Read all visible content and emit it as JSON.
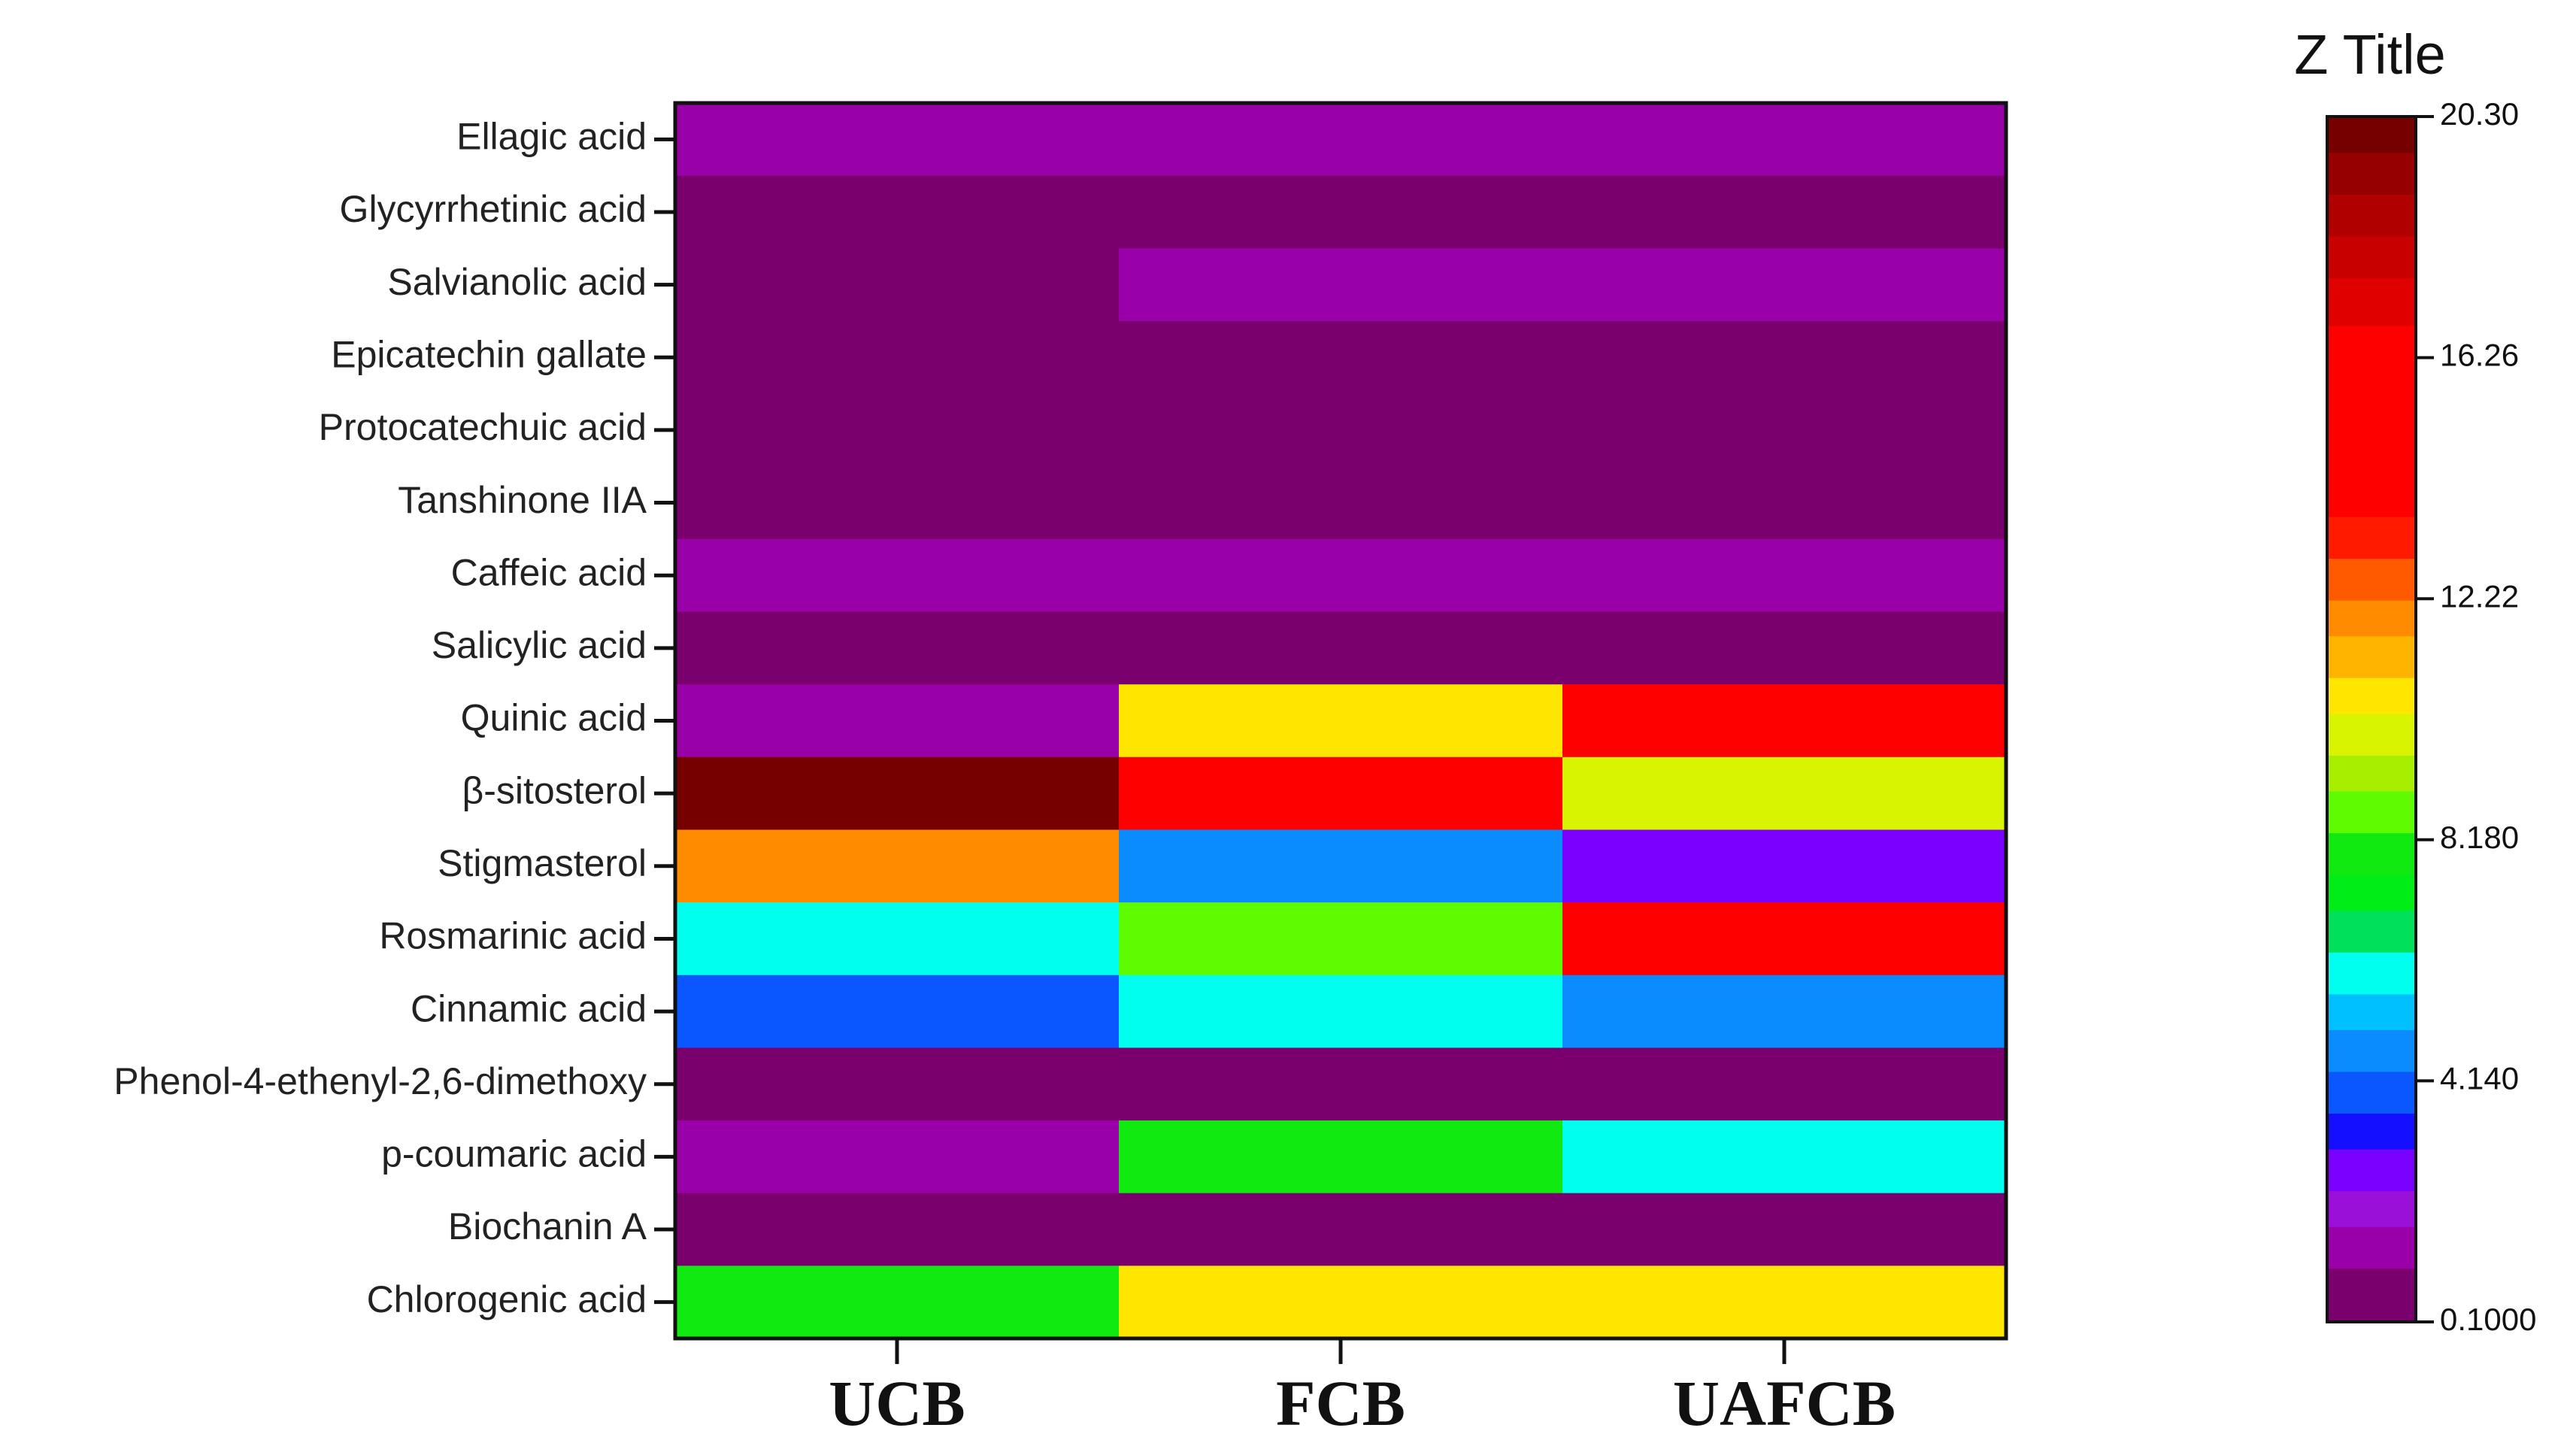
{
  "chart_data": {
    "type": "heatmap",
    "title": "",
    "xlabel": "",
    "ylabel": "",
    "columns": [
      "UCB",
      "FCB",
      "UAFCB"
    ],
    "rows": [
      "Ellagic acid",
      "Glycyrrhetinic acid",
      "Salvianolic acid",
      "Epicatechin gallate",
      "Protocatechuic acid",
      "Tanshinone IIA",
      "Caffeic acid",
      "Salicylic acid",
      "Quinic acid",
      "β-sitosterol",
      "Stigmasterol",
      "Rosmarinic acid",
      "Cinnamic acid",
      "Phenol-4-ethenyl-2,6-dimethoxy",
      "p-coumaric acid",
      "Biochanin A",
      "Chlorogenic acid"
    ],
    "values": [
      [
        1.0,
        1.0,
        1.0
      ],
      [
        0.1,
        0.1,
        0.1
      ],
      [
        0.1,
        1.0,
        1.0
      ],
      [
        0.1,
        0.1,
        0.1
      ],
      [
        0.1,
        0.1,
        0.1
      ],
      [
        0.1,
        0.1,
        0.1
      ],
      [
        1.0,
        1.0,
        1.0
      ],
      [
        0.1,
        0.1,
        0.1
      ],
      [
        1.0,
        10.8,
        15.5
      ],
      [
        20.3,
        15.5,
        9.6
      ],
      [
        11.6,
        4.7,
        2.6
      ],
      [
        6.1,
        8.6,
        15.5
      ],
      [
        3.6,
        5.6,
        4.8
      ],
      [
        0.1,
        0.1,
        0.1
      ],
      [
        1.0,
        7.6,
        5.6
      ],
      [
        0.1,
        0.1,
        0.1
      ],
      [
        7.6,
        10.8,
        10.8
      ]
    ],
    "colorbar": {
      "title": "Z Title",
      "min": 0.1,
      "max": 20.3,
      "ticks": [
        {
          "value": 20.3,
          "label": "20.30"
        },
        {
          "value": 16.26,
          "label": "16.26"
        },
        {
          "value": 12.22,
          "label": "12.22"
        },
        {
          "value": 8.18,
          "label": "8.180"
        },
        {
          "value": 4.14,
          "label": "4.140"
        },
        {
          "value": 0.1,
          "label": "0.1000"
        }
      ],
      "levels": [
        {
          "from": 0.1,
          "to": 1.0,
          "color": "#7a006e"
        },
        {
          "from": 1.0,
          "to": 1.7,
          "color": "#9900a8"
        },
        {
          "from": 1.7,
          "to": 2.3,
          "color": "#9a10d8"
        },
        {
          "from": 2.3,
          "to": 3.0,
          "color": "#7a00ff"
        },
        {
          "from": 3.0,
          "to": 3.6,
          "color": "#1410ff"
        },
        {
          "from": 3.6,
          "to": 4.3,
          "color": "#0a56ff"
        },
        {
          "from": 4.3,
          "to": 5.0,
          "color": "#0a8cff"
        },
        {
          "from": 5.0,
          "to": 5.6,
          "color": "#00c0ff"
        },
        {
          "from": 5.6,
          "to": 6.3,
          "color": "#00ffee"
        },
        {
          "from": 6.3,
          "to": 7.0,
          "color": "#00e05a"
        },
        {
          "from": 7.0,
          "to": 7.6,
          "color": "#00ee16"
        },
        {
          "from": 7.6,
          "to": 8.3,
          "color": "#10ea10"
        },
        {
          "from": 8.3,
          "to": 9.0,
          "color": "#5ffb00"
        },
        {
          "from": 9.0,
          "to": 9.6,
          "color": "#a8ee00"
        },
        {
          "from": 9.6,
          "to": 10.3,
          "color": "#d8f400"
        },
        {
          "from": 10.3,
          "to": 10.9,
          "color": "#ffe600"
        },
        {
          "from": 10.9,
          "to": 11.6,
          "color": "#ffb400"
        },
        {
          "from": 11.6,
          "to": 12.2,
          "color": "#ff8c00"
        },
        {
          "from": 12.2,
          "to": 12.9,
          "color": "#ff5a00"
        },
        {
          "from": 12.9,
          "to": 13.6,
          "color": "#ff1a00"
        },
        {
          "from": 13.6,
          "to": 16.8,
          "color": "#ff0000"
        },
        {
          "from": 16.8,
          "to": 17.6,
          "color": "#e00000"
        },
        {
          "from": 17.6,
          "to": 18.3,
          "color": "#c80000"
        },
        {
          "from": 18.3,
          "to": 19.0,
          "color": "#b00000"
        },
        {
          "from": 19.0,
          "to": 19.7,
          "color": "#960000"
        },
        {
          "from": 19.7,
          "to": 20.3,
          "color": "#760000"
        }
      ]
    },
    "grid": false,
    "legend_placement": "right"
  }
}
